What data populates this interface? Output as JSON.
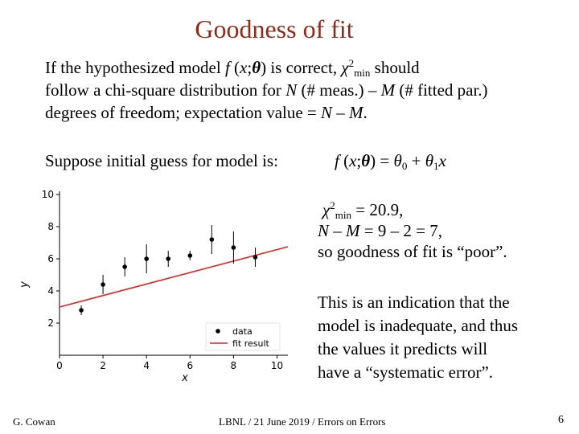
{
  "slide": {
    "title": "Goodness of fit",
    "intro": {
      "p1": "If the hypothesized model ",
      "f": "f",
      "p2": " (",
      "x": "x",
      "semi": ";",
      "theta": "θ",
      "p3": ") is correct, ",
      "chi": "χ",
      "sq": "2",
      "min": "min",
      "p4": " should",
      "line2a": "follow a chi-square distribution for ",
      "N": "N",
      "line2b": " (# meas.) – ",
      "M": "M",
      "line2c": " (# fitted par.)",
      "line3a": "degrees of freedom; expectation value = ",
      "N2": "N",
      "dash": " – ",
      "M2": "M",
      "end": "."
    },
    "suppose": "Suppose initial guess for model is:",
    "model": {
      "f": "f",
      "open": " (",
      "x": "x",
      "semi": ";",
      "theta": "θ",
      "eq": ") = ",
      "t0": "θ",
      "s0": "0",
      "plus": " + ",
      "t1": "θ",
      "s1": "1",
      "x2": "x"
    },
    "result": {
      "chi": "χ",
      "sq": "2",
      "min": "min",
      "val": " =  20.9,",
      "N": "N",
      "dash1": " – ",
      "M": "M",
      "rest2": " = 9 – 2 = 7,",
      "line3": "so goodness of fit is “poor”."
    },
    "indication": [
      "This is an indication that the",
      "model is inadequate, and thus",
      "the values it predicts will",
      "have a “systematic error”."
    ],
    "footer": {
      "author": "G. Cowan",
      "event": "LBNL / 21 June 2019 / Errors on Errors",
      "page": "6"
    }
  },
  "chart_data": {
    "type": "scatter",
    "xlabel": "x",
    "ylabel": "y",
    "xlim": [
      0,
      10.5
    ],
    "ylim": [
      0,
      10.2
    ],
    "xticks": [
      0,
      2,
      4,
      6,
      8,
      10
    ],
    "yticks": [
      2,
      4,
      6,
      8,
      10
    ],
    "points": [
      {
        "x": 1,
        "y": 2.8,
        "err": 0.3
      },
      {
        "x": 2,
        "y": 4.4,
        "err": 0.6
      },
      {
        "x": 3,
        "y": 5.5,
        "err": 0.6
      },
      {
        "x": 4,
        "y": 6.0,
        "err": 0.9
      },
      {
        "x": 5,
        "y": 6.0,
        "err": 0.5
      },
      {
        "x": 6,
        "y": 6.2,
        "err": 0.3
      },
      {
        "x": 7,
        "y": 7.2,
        "err": 0.9
      },
      {
        "x": 8,
        "y": 6.7,
        "err": 1.0
      },
      {
        "x": 9,
        "y": 6.1,
        "err": 0.6
      }
    ],
    "fit": {
      "intercept": 3.0,
      "slope": 0.357
    },
    "legend": [
      "data",
      "fit result"
    ],
    "legend_position": "bottom-right",
    "colors": {
      "data": "#000000",
      "fit": "#d62728"
    }
  }
}
